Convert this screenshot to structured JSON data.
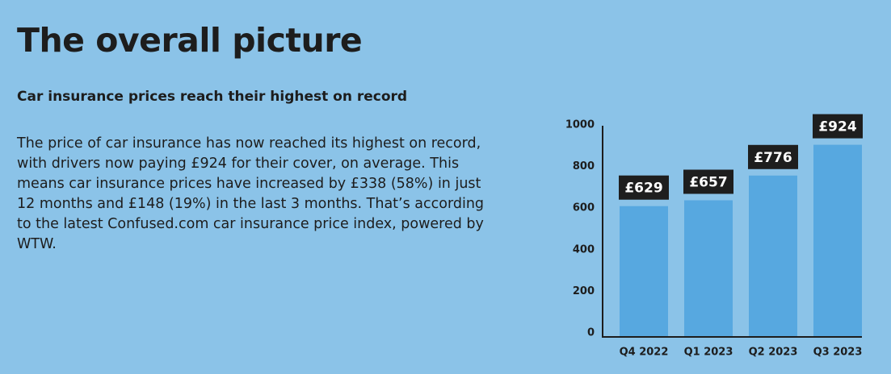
{
  "header": {
    "title": "The overall picture",
    "subtitle": "Car insurance prices reach their highest on record"
  },
  "body": {
    "paragraph": "The price of car insurance has now reached its highest on record, with drivers now paying £924 for their cover, on average. This means car insurance prices have increased by £338 (58%) in just 12 months and £148 (19%) in the last 3 months. That’s according to the latest Confused.com car insurance price index, powered by WTW."
  },
  "chart_data": {
    "type": "bar",
    "categories": [
      "Q4 2022",
      "Q1 2023",
      "Q2 2023",
      "Q3 2023"
    ],
    "values": [
      629,
      657,
      776,
      924
    ],
    "value_labels": [
      "£629",
      "£657",
      "£776",
      "£924"
    ],
    "color": "#57a8e0",
    "ylim": [
      0,
      1000
    ],
    "yticks": [
      0,
      200,
      400,
      600,
      800,
      1000
    ],
    "grid": false
  }
}
